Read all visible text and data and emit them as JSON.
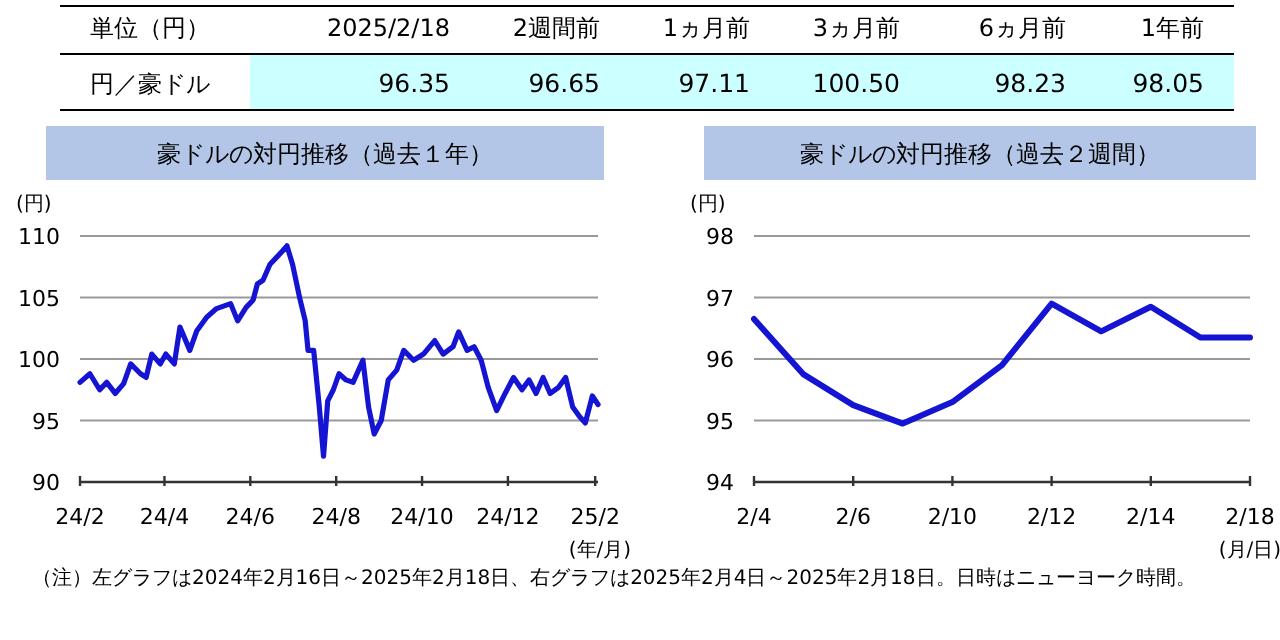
{
  "chart_data": [
    {
      "type": "other",
      "title": "単位（円）",
      "categories": [
        "2025/2/18",
        "2週間前",
        "1ヵ月前",
        "3ヵ月前",
        "6ヵ月前",
        "1年前"
      ],
      "series": [
        {
          "name": "円／豪ドル",
          "color": "#ccffff",
          "values": [
            96.35,
            96.65,
            97.11,
            100.5,
            98.23,
            98.05
          ],
          "value_labels": [
            "96.35",
            "96.65",
            "97.11",
            "100.50",
            "98.23",
            "98.05"
          ]
        }
      ]
    },
    {
      "type": "line",
      "title": "豪ドルの対円推移（過去１年）",
      "ylabel": "(円)",
      "xlabel": "(年/月)",
      "grid": "y",
      "xlim": [
        "2024-02-16",
        "2025-02-18"
      ],
      "ylim": [
        90,
        110
      ],
      "yticks": [
        90,
        95,
        100,
        105,
        110
      ],
      "xticks": [
        {
          "value": "2024-02-16",
          "label": "24/2"
        },
        {
          "value": "2024-04-16",
          "label": "24/4"
        },
        {
          "value": "2024-06-16",
          "label": "24/6"
        },
        {
          "value": "2024-08-16",
          "label": "24/8"
        },
        {
          "value": "2024-10-16",
          "label": "24/10"
        },
        {
          "value": "2024-12-16",
          "label": "24/12"
        },
        {
          "value": "2025-02-16",
          "label": "25/2"
        }
      ],
      "series": [
        {
          "color": "#1414d2",
          "x": [
            "2024-02-16",
            "2024-02-23",
            "2024-03-01",
            "2024-03-06",
            "2024-03-12",
            "2024-03-18",
            "2024-03-23",
            "2024-03-30",
            "2024-04-03",
            "2024-04-07",
            "2024-04-13",
            "2024-04-17",
            "2024-04-23",
            "2024-04-27",
            "2024-05-04",
            "2024-05-09",
            "2024-05-16",
            "2024-05-23",
            "2024-06-02",
            "2024-06-07",
            "2024-06-13",
            "2024-06-18",
            "2024-06-21",
            "2024-06-25",
            "2024-06-30",
            "2024-07-05",
            "2024-07-09",
            "2024-07-12",
            "2024-07-16",
            "2024-07-21",
            "2024-07-25",
            "2024-07-27",
            "2024-07-31",
            "2024-08-04",
            "2024-08-07",
            "2024-08-10",
            "2024-08-14",
            "2024-08-18",
            "2024-08-23",
            "2024-08-28",
            "2024-09-04",
            "2024-09-08",
            "2024-09-12",
            "2024-09-17",
            "2024-09-22",
            "2024-09-28",
            "2024-10-03",
            "2024-10-10",
            "2024-10-17",
            "2024-10-25",
            "2024-10-31",
            "2024-11-07",
            "2024-11-11",
            "2024-11-17",
            "2024-11-22",
            "2024-11-27",
            "2024-12-02",
            "2024-12-08",
            "2024-12-14",
            "2024-12-20",
            "2024-12-26",
            "2024-12-31",
            "2025-01-05",
            "2025-01-10",
            "2025-01-15",
            "2025-01-21",
            "2025-01-26",
            "2025-01-31",
            "2025-02-05",
            "2025-02-09",
            "2025-02-14",
            "2025-02-18"
          ],
          "values": [
            98.1,
            98.8,
            97.5,
            98.1,
            97.2,
            98.0,
            99.6,
            98.8,
            98.5,
            100.4,
            99.6,
            100.4,
            99.6,
            102.6,
            100.7,
            102.3,
            103.4,
            104.1,
            104.5,
            103.1,
            104.2,
            104.8,
            106.1,
            106.4,
            107.7,
            108.3,
            108.8,
            109.2,
            107.7,
            105.0,
            103.1,
            100.7,
            100.7,
            96.1,
            92.1,
            96.6,
            97.5,
            98.8,
            98.3,
            98.1,
            99.9,
            96.1,
            93.9,
            95.0,
            98.3,
            99.1,
            100.7,
            99.9,
            100.4,
            101.5,
            100.4,
            101.0,
            102.2,
            100.7,
            101.0,
            99.9,
            97.7,
            95.8,
            97.2,
            98.5,
            97.5,
            98.3,
            97.2,
            98.5,
            97.2,
            97.7,
            98.5,
            96.1,
            95.3,
            94.8,
            97.0,
            96.3
          ]
        }
      ]
    },
    {
      "type": "line",
      "title": "豪ドルの対円推移（過去２週間）",
      "ylabel": "(円)",
      "xlabel": "(月/日)",
      "grid": "y",
      "categories": [
        "2/4",
        null,
        "2/6",
        null,
        "2/10",
        null,
        "2/12",
        null,
        "2/14",
        null,
        "2/18"
      ],
      "ylim": [
        94,
        98
      ],
      "yticks": [
        94,
        95,
        96,
        97,
        98
      ],
      "series": [
        {
          "color": "#1414d2",
          "values": [
            96.65,
            95.75,
            95.25,
            94.95,
            95.3,
            95.9,
            96.9,
            96.45,
            96.85,
            96.35,
            96.35
          ]
        }
      ],
      "annotations": [
        "（注）左グラフは2024年2月16日～2025年2月18日、右グラフは2025年2月4日～2025年2月18日。日時はニューヨーク時間。"
      ]
    }
  ]
}
